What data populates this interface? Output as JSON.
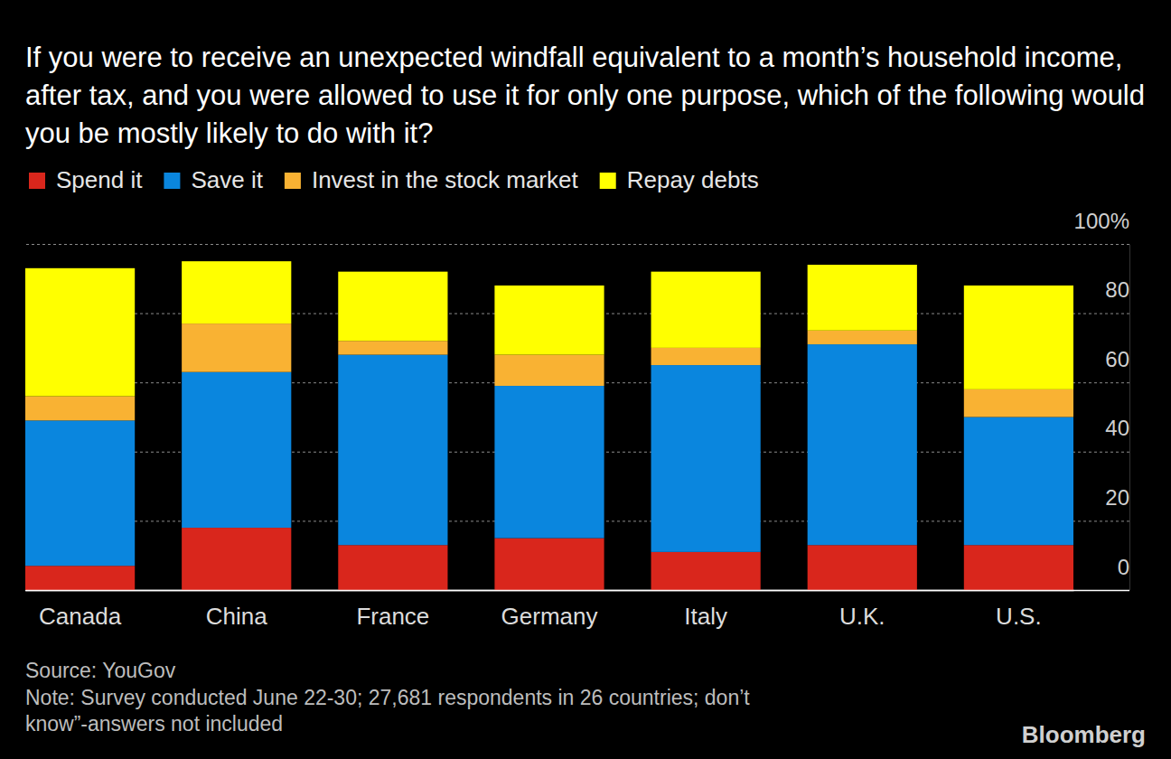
{
  "chart_data": {
    "type": "bar",
    "stacked": true,
    "grid": true,
    "legend": "top",
    "title": "If you were to receive an unexpected windfall equivalent to a month’s household income, after tax, and you were allowed to use it for only one purpose, which of the following would you be mostly likely to do with it?",
    "categories": [
      "Canada",
      "China",
      "France",
      "Germany",
      "Italy",
      "U.K.",
      "U.S."
    ],
    "series": [
      {
        "name": "Spend it",
        "color": "#d9261c",
        "values": [
          7,
          18,
          13,
          15,
          11,
          13,
          13
        ]
      },
      {
        "name": "Save it",
        "color": "#0a86de",
        "values": [
          42,
          45,
          55,
          44,
          54,
          58,
          37
        ]
      },
      {
        "name": "Invest in the stock market",
        "color": "#f9b233",
        "values": [
          7,
          14,
          4,
          9,
          5,
          4,
          8
        ]
      },
      {
        "name": "Repay debts",
        "color": "#ffff00",
        "values": [
          37,
          18,
          20,
          20,
          22,
          19,
          30
        ]
      }
    ],
    "ylim": [
      0,
      100
    ],
    "yticks": [
      0,
      20,
      40,
      60,
      80,
      {
        "value": 100,
        "label": "100%"
      }
    ],
    "source": "Source: YouGov",
    "note": "Note: Survey conducted June 22-30; 27,681 respondents in 26 countries; don’t know”-answers not included",
    "credit": "Bloomberg"
  }
}
